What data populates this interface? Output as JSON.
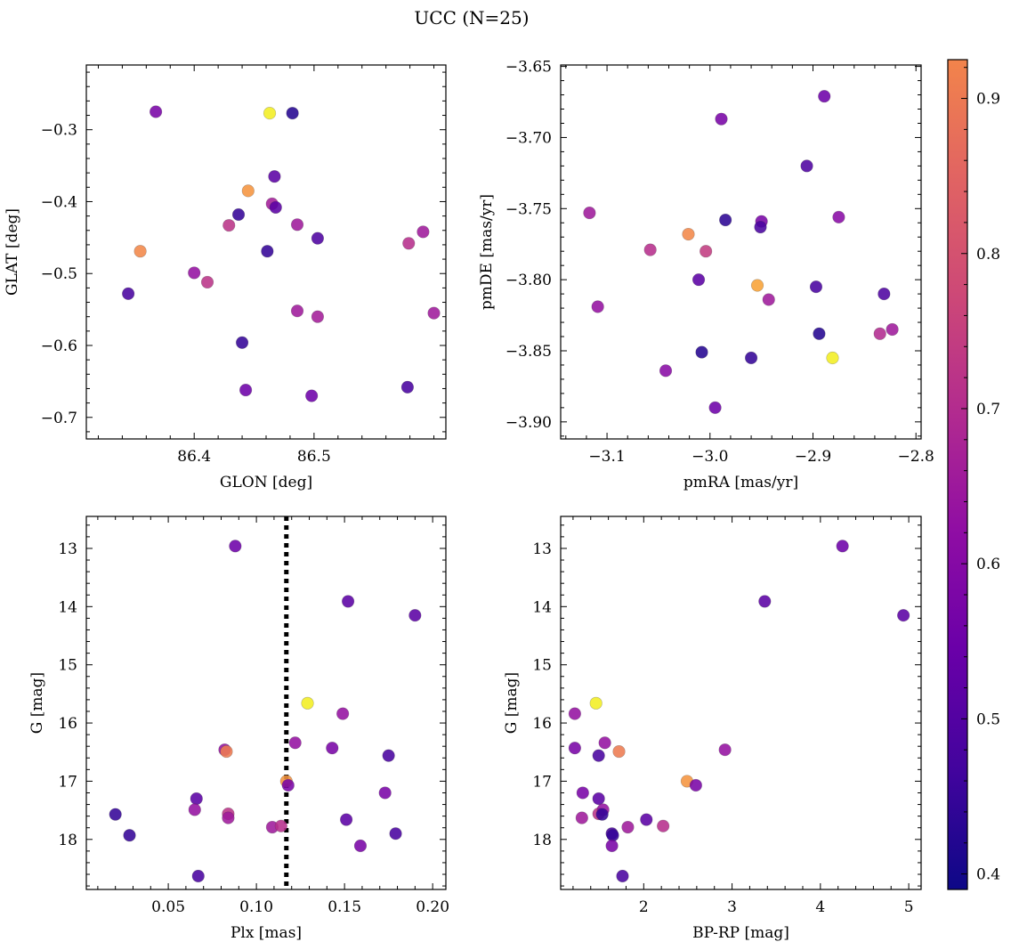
{
  "figure": {
    "title": "UCC (N=25)"
  },
  "colorbar": {
    "ticks": [
      {
        "v": 0.4,
        "label": "0.4"
      },
      {
        "v": 0.5,
        "label": "0.5"
      },
      {
        "v": 0.6,
        "label": "0.6"
      },
      {
        "v": 0.7,
        "label": "0.7"
      },
      {
        "v": 0.8,
        "label": "0.8"
      },
      {
        "v": 0.9,
        "label": "0.9"
      }
    ],
    "range": [
      0.39,
      0.925
    ],
    "colormap": "plasma"
  },
  "chart_data": [
    {
      "id": "glon-glat",
      "type": "scatter",
      "xlabel": "GLON [deg]",
      "ylabel": "GLAT [deg]",
      "xlim": [
        86.31,
        86.61
      ],
      "ylim": [
        -0.73,
        -0.21
      ],
      "xticks": [
        {
          "v": 86.4,
          "label": "86.4"
        },
        {
          "v": 86.5,
          "label": "86.5"
        }
      ],
      "yticks": [
        {
          "v": -0.3,
          "label": "−0.3"
        },
        {
          "v": -0.4,
          "label": "−0.4"
        },
        {
          "v": -0.5,
          "label": "−0.5"
        },
        {
          "v": -0.6,
          "label": "−0.6"
        },
        {
          "v": -0.7,
          "label": "−0.7"
        }
      ],
      "points": [
        {
          "x": 86.368,
          "y": -0.275,
          "c": 0.55
        },
        {
          "x": 86.463,
          "y": -0.277,
          "c": 0.92
        },
        {
          "x": 86.482,
          "y": -0.277,
          "c": 0.42
        },
        {
          "x": 86.467,
          "y": -0.365,
          "c": 0.5
        },
        {
          "x": 86.445,
          "y": -0.385,
          "c": 0.87
        },
        {
          "x": 86.465,
          "y": -0.403,
          "c": 0.63
        },
        {
          "x": 86.468,
          "y": -0.408,
          "c": 0.5
        },
        {
          "x": 86.437,
          "y": -0.418,
          "c": 0.44
        },
        {
          "x": 86.429,
          "y": -0.433,
          "c": 0.68
        },
        {
          "x": 86.486,
          "y": -0.432,
          "c": 0.62
        },
        {
          "x": 86.591,
          "y": -0.442,
          "c": 0.62
        },
        {
          "x": 86.503,
          "y": -0.451,
          "c": 0.48
        },
        {
          "x": 86.579,
          "y": -0.458,
          "c": 0.67
        },
        {
          "x": 86.355,
          "y": -0.469,
          "c": 0.86
        },
        {
          "x": 86.461,
          "y": -0.469,
          "c": 0.44
        },
        {
          "x": 86.4,
          "y": -0.499,
          "c": 0.6
        },
        {
          "x": 86.411,
          "y": -0.512,
          "c": 0.68
        },
        {
          "x": 86.345,
          "y": -0.528,
          "c": 0.47
        },
        {
          "x": 86.486,
          "y": -0.552,
          "c": 0.62
        },
        {
          "x": 86.503,
          "y": -0.56,
          "c": 0.63
        },
        {
          "x": 86.6,
          "y": -0.555,
          "c": 0.62
        },
        {
          "x": 86.44,
          "y": -0.596,
          "c": 0.44
        },
        {
          "x": 86.578,
          "y": -0.658,
          "c": 0.47
        },
        {
          "x": 86.443,
          "y": -0.662,
          "c": 0.53
        },
        {
          "x": 86.498,
          "y": -0.67,
          "c": 0.53
        }
      ]
    },
    {
      "id": "pmra-pmde",
      "type": "scatter",
      "xlabel": "pmRA [mas/yr]",
      "ylabel": "pmDE [mas/yr]",
      "xlim": [
        -3.145,
        -2.795
      ],
      "ylim": [
        -3.912,
        -3.649
      ],
      "xticks": [
        {
          "v": -3.1,
          "label": "−3.1"
        },
        {
          "v": -3.0,
          "label": "−3.0"
        },
        {
          "v": -2.9,
          "label": "−2.9"
        },
        {
          "v": -2.8,
          "label": "−2.8"
        }
      ],
      "yticks": [
        {
          "v": -3.65,
          "label": "−3.65"
        },
        {
          "v": -3.7,
          "label": "−3.70"
        },
        {
          "v": -3.75,
          "label": "−3.75"
        },
        {
          "v": -3.8,
          "label": "−3.80"
        },
        {
          "v": -3.85,
          "label": "−3.85"
        },
        {
          "v": -3.9,
          "label": "−3.90"
        }
      ],
      "points": [
        {
          "x": -2.889,
          "y": -3.671,
          "c": 0.53
        },
        {
          "x": -2.989,
          "y": -3.687,
          "c": 0.55
        },
        {
          "x": -2.906,
          "y": -3.72,
          "c": 0.48
        },
        {
          "x": -3.117,
          "y": -3.753,
          "c": 0.62
        },
        {
          "x": -2.95,
          "y": -3.759,
          "c": 0.55
        },
        {
          "x": -2.951,
          "y": -3.763,
          "c": 0.47
        },
        {
          "x": -2.985,
          "y": -3.758,
          "c": 0.43
        },
        {
          "x": -2.875,
          "y": -3.756,
          "c": 0.58
        },
        {
          "x": -3.058,
          "y": -3.779,
          "c": 0.67
        },
        {
          "x": -3.021,
          "y": -3.768,
          "c": 0.86
        },
        {
          "x": -3.004,
          "y": -3.78,
          "c": 0.7
        },
        {
          "x": -2.954,
          "y": -3.804,
          "c": 0.88
        },
        {
          "x": -2.943,
          "y": -3.814,
          "c": 0.62
        },
        {
          "x": -3.011,
          "y": -3.8,
          "c": 0.5
        },
        {
          "x": -2.897,
          "y": -3.805,
          "c": 0.47
        },
        {
          "x": -2.831,
          "y": -3.81,
          "c": 0.48
        },
        {
          "x": -3.109,
          "y": -3.819,
          "c": 0.6
        },
        {
          "x": -2.894,
          "y": -3.838,
          "c": 0.42
        },
        {
          "x": -2.835,
          "y": -3.838,
          "c": 0.66
        },
        {
          "x": -2.823,
          "y": -3.835,
          "c": 0.62
        },
        {
          "x": -3.008,
          "y": -3.851,
          "c": 0.42
        },
        {
          "x": -2.96,
          "y": -3.855,
          "c": 0.44
        },
        {
          "x": -2.881,
          "y": -3.855,
          "c": 0.92
        },
        {
          "x": -3.043,
          "y": -3.864,
          "c": 0.58
        },
        {
          "x": -2.995,
          "y": -3.89,
          "c": 0.53
        }
      ]
    },
    {
      "id": "plx-g",
      "type": "scatter",
      "xlabel": "Plx [mas]",
      "ylabel": "G [mag]",
      "xlim": [
        0.0035,
        0.2075
      ],
      "ylim": [
        18.86,
        12.45
      ],
      "y_inverted": true,
      "vline": {
        "x": 0.117,
        "style": "dotted"
      },
      "xticks": [
        {
          "v": 0.05,
          "label": "0.05"
        },
        {
          "v": 0.1,
          "label": "0.10"
        },
        {
          "v": 0.15,
          "label": "0.15"
        },
        {
          "v": 0.2,
          "label": "0.20"
        }
      ],
      "yticks": [
        {
          "v": 13,
          "label": "13"
        },
        {
          "v": 14,
          "label": "14"
        },
        {
          "v": 15,
          "label": "15"
        },
        {
          "v": 16,
          "label": "16"
        },
        {
          "v": 17,
          "label": "17"
        },
        {
          "v": 18,
          "label": "18"
        }
      ],
      "points": [
        {
          "x": 0.088,
          "y": 12.96,
          "c": 0.53
        },
        {
          "x": 0.152,
          "y": 13.91,
          "c": 0.5
        },
        {
          "x": 0.19,
          "y": 14.15,
          "c": 0.5
        },
        {
          "x": 0.129,
          "y": 15.66,
          "c": 0.92
        },
        {
          "x": 0.149,
          "y": 15.84,
          "c": 0.6
        },
        {
          "x": 0.122,
          "y": 16.34,
          "c": 0.6
        },
        {
          "x": 0.082,
          "y": 16.46,
          "c": 0.6
        },
        {
          "x": 0.083,
          "y": 16.49,
          "c": 0.84
        },
        {
          "x": 0.143,
          "y": 16.43,
          "c": 0.55
        },
        {
          "x": 0.175,
          "y": 16.56,
          "c": 0.47
        },
        {
          "x": 0.117,
          "y": 17.0,
          "c": 0.87
        },
        {
          "x": 0.118,
          "y": 17.07,
          "c": 0.55
        },
        {
          "x": 0.066,
          "y": 17.3,
          "c": 0.5
        },
        {
          "x": 0.065,
          "y": 17.49,
          "c": 0.6
        },
        {
          "x": 0.173,
          "y": 17.2,
          "c": 0.55
        },
        {
          "x": 0.084,
          "y": 17.56,
          "c": 0.68
        },
        {
          "x": 0.084,
          "y": 17.63,
          "c": 0.62
        },
        {
          "x": 0.02,
          "y": 17.57,
          "c": 0.44
        },
        {
          "x": 0.151,
          "y": 17.66,
          "c": 0.5
        },
        {
          "x": 0.109,
          "y": 17.79,
          "c": 0.62
        },
        {
          "x": 0.114,
          "y": 17.77,
          "c": 0.67
        },
        {
          "x": 0.028,
          "y": 17.93,
          "c": 0.44
        },
        {
          "x": 0.179,
          "y": 17.9,
          "c": 0.47
        },
        {
          "x": 0.159,
          "y": 18.11,
          "c": 0.55
        },
        {
          "x": 0.067,
          "y": 18.63,
          "c": 0.47
        }
      ]
    },
    {
      "id": "bprp-g",
      "type": "scatter",
      "xlabel": "BP-RP [mag]",
      "ylabel": "G [mag]",
      "xlim": [
        1.06,
        5.14
      ],
      "ylim": [
        18.86,
        12.45
      ],
      "y_inverted": true,
      "xticks": [
        {
          "v": 2,
          "label": "2"
        },
        {
          "v": 3,
          "label": "3"
        },
        {
          "v": 4,
          "label": "4"
        },
        {
          "v": 5,
          "label": "5"
        }
      ],
      "yticks": [
        {
          "v": 13,
          "label": "13"
        },
        {
          "v": 14,
          "label": "14"
        },
        {
          "v": 15,
          "label": "15"
        },
        {
          "v": 16,
          "label": "16"
        },
        {
          "v": 17,
          "label": "17"
        },
        {
          "v": 18,
          "label": "18"
        }
      ],
      "points": [
        {
          "x": 4.25,
          "y": 12.96,
          "c": 0.53
        },
        {
          "x": 3.37,
          "y": 13.91,
          "c": 0.5
        },
        {
          "x": 4.94,
          "y": 14.15,
          "c": 0.5
        },
        {
          "x": 1.46,
          "y": 15.66,
          "c": 0.92
        },
        {
          "x": 1.22,
          "y": 15.84,
          "c": 0.6
        },
        {
          "x": 1.22,
          "y": 16.43,
          "c": 0.55
        },
        {
          "x": 1.56,
          "y": 16.34,
          "c": 0.6
        },
        {
          "x": 1.72,
          "y": 16.49,
          "c": 0.84
        },
        {
          "x": 2.92,
          "y": 16.46,
          "c": 0.6
        },
        {
          "x": 1.49,
          "y": 16.56,
          "c": 0.47
        },
        {
          "x": 2.49,
          "y": 17.0,
          "c": 0.87
        },
        {
          "x": 2.59,
          "y": 17.07,
          "c": 0.55
        },
        {
          "x": 1.31,
          "y": 17.2,
          "c": 0.55
        },
        {
          "x": 1.49,
          "y": 17.3,
          "c": 0.5
        },
        {
          "x": 1.49,
          "y": 17.56,
          "c": 0.68
        },
        {
          "x": 1.54,
          "y": 17.49,
          "c": 0.6
        },
        {
          "x": 1.3,
          "y": 17.63,
          "c": 0.62
        },
        {
          "x": 1.53,
          "y": 17.57,
          "c": 0.44
        },
        {
          "x": 2.03,
          "y": 17.66,
          "c": 0.5
        },
        {
          "x": 1.82,
          "y": 17.79,
          "c": 0.62
        },
        {
          "x": 2.22,
          "y": 17.77,
          "c": 0.67
        },
        {
          "x": 1.64,
          "y": 17.9,
          "c": 0.47
        },
        {
          "x": 1.65,
          "y": 17.93,
          "c": 0.44
        },
        {
          "x": 1.64,
          "y": 18.11,
          "c": 0.55
        },
        {
          "x": 1.76,
          "y": 18.63,
          "c": 0.47
        }
      ]
    }
  ]
}
